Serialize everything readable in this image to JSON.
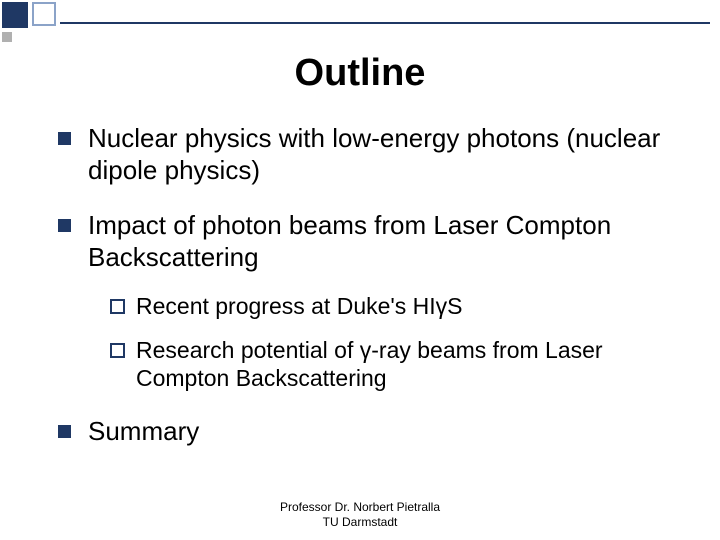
{
  "colors": {
    "accent": "#1f3864",
    "light_accent": "#8ba3c8",
    "gray_square": "#b0b0b0",
    "background": "#ffffff",
    "text": "#000000"
  },
  "title": "Outline",
  "title_fontsize": 38,
  "body_fontsize": 26,
  "sub_fontsize": 23,
  "footer_fontsize": 12,
  "bullets": [
    {
      "text": "Nuclear physics with low-energy photons (nuclear dipole physics)",
      "sub": []
    },
    {
      "text": "Impact of photon beams from Laser Compton Backscattering",
      "sub": [
        {
          "text": "Recent progress at Duke's HIγS"
        },
        {
          "text": "Research potential of γ-ray beams from Laser Compton Backscattering"
        }
      ]
    },
    {
      "text": "Summary",
      "sub": []
    }
  ],
  "footer": {
    "line1": "Professor Dr. Norbert Pietralla",
    "line2": "TU Darmstadt"
  },
  "bullet_marker": {
    "type": "filled-square",
    "size": 13,
    "color": "#1f3864"
  },
  "sub_marker": {
    "type": "outline-square",
    "size": 11,
    "border": 2,
    "color": "#1f3864"
  }
}
